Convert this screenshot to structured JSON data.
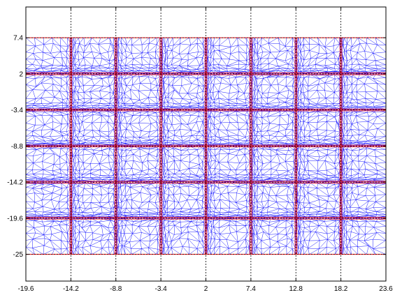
{
  "chart_data": {
    "type": "mesh",
    "title": "",
    "xlabel": "",
    "ylabel": "",
    "xlim": [
      -19.6,
      23.6
    ],
    "ylim": [
      -29,
      12
    ],
    "x_ticks": [
      -19.6,
      -14.2,
      -8.8,
      -3.4,
      2,
      7.4,
      12.8,
      18.2,
      23.6
    ],
    "x_tick_labels": [
      "-19.6",
      "-14.2",
      "-8.8",
      "-3.4",
      "2",
      "7.4",
      "12.8",
      "18.2",
      "23.6"
    ],
    "y_ticks": [
      7.4,
      2,
      -3.4,
      -8.8,
      -14.2,
      -19.6,
      -25
    ],
    "y_tick_labels": [
      "7.4",
      "2",
      "-3.4",
      "-8.8",
      "-14.2",
      "-19.6",
      "-25"
    ],
    "grid": true,
    "grid_style": "dashed",
    "domain_rect": {
      "x": [
        -19.6,
        23.6
      ],
      "y": [
        -25,
        7.4
      ]
    },
    "refinement_x": [
      -14.2,
      -8.8,
      -3.4,
      2,
      7.4,
      12.8,
      18.2
    ],
    "refinement_y": [
      2,
      -3.4,
      -8.8,
      -14.2,
      -19.6
    ],
    "series": [
      {
        "role": "mesh-edges",
        "color": "#0000ff"
      },
      {
        "role": "boundary-lines",
        "color": "#ff0000"
      }
    ]
  },
  "colors": {
    "mesh": "#0000ff",
    "boundary": "#ff0000",
    "grid": "#000000",
    "axes": "#000000",
    "background": "#ffffff"
  }
}
